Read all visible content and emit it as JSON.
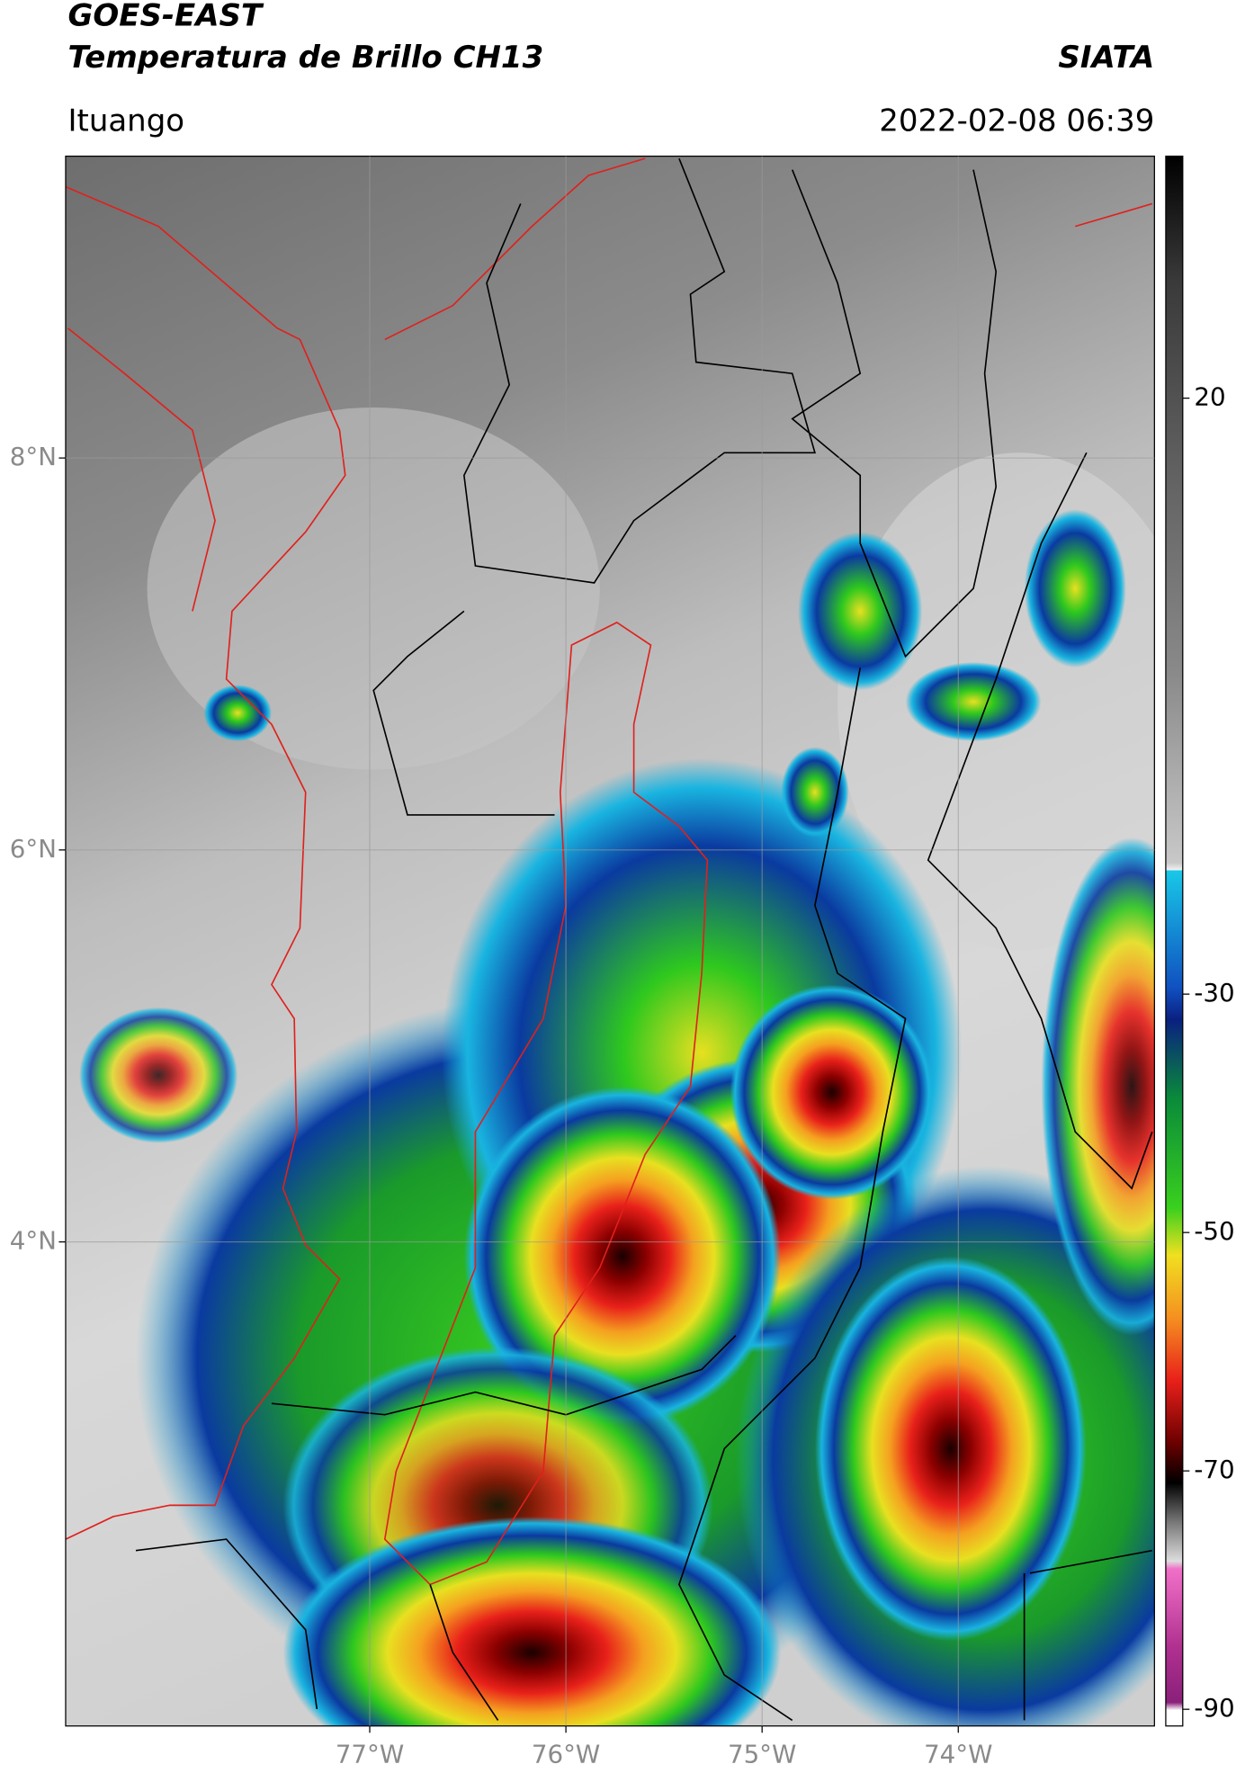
{
  "header": {
    "title": "GOES-EAST",
    "subtitle": "Temperatura de Brillo CH13",
    "source": "SIATA",
    "location": "Ituango",
    "datetime": "2022-02-08 06:39"
  },
  "map": {
    "xlim": [
      -78.55,
      -73.0
    ],
    "ylim": [
      1.53,
      9.54
    ],
    "xticks": [
      {
        "value": -77,
        "label": "77°W"
      },
      {
        "value": -76,
        "label": "76°W"
      },
      {
        "value": -75,
        "label": "75°W"
      },
      {
        "value": -74,
        "label": "74°W"
      }
    ],
    "yticks": [
      {
        "value": 4,
        "label": "4°N"
      },
      {
        "value": 6,
        "label": "6°N"
      },
      {
        "value": 8,
        "label": "8°N"
      }
    ],
    "grid": true
  },
  "colorbar": {
    "clim": [
      -91.4,
      40.3
    ],
    "ticks": [
      20,
      -30,
      -50,
      -70,
      -90
    ]
  }
}
